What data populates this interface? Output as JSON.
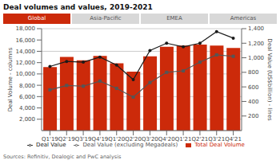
{
  "chart_data": {
    "type": "bar",
    "title": "Deal volumes and values, 2019-2021",
    "annotations": [
      "Global",
      "Asia-Pacific",
      "EMEA",
      "Americas"
    ],
    "source": "Sources: Refinitiv, Dealogic and PwC analysis",
    "categories": [
      "Q1'19",
      "Q2'19",
      "Q3'19",
      "Q4'19",
      "Q1'20",
      "Q2'20",
      "Q3'20",
      "Q4'20",
      "Q1'21",
      "Q2'21",
      "Q3'21",
      "Q4'21"
    ],
    "series": [
      {
        "name": "Total Deal Volume",
        "type": "bar",
        "color": "#cc2a0a",
        "values": [
          11200,
          13000,
          12400,
          13200,
          11900,
          10400,
          13100,
          14800,
          15000,
          15200,
          15000,
          14600
        ]
      },
      {
        "name": "Deal Value",
        "type": "line",
        "axis": "y2",
        "color": "#1a1a1a",
        "marker": "circle",
        "values": [
          880,
          950,
          940,
          1010,
          900,
          700,
          1100,
          1200,
          1150,
          1200,
          1360,
          1270
        ]
      },
      {
        "name": "Deal Value (excluding Megadeals)",
        "type": "line",
        "axis": "y2",
        "color": "#555555",
        "marker": "square",
        "values": [
          560,
          620,
          610,
          680,
          580,
          460,
          660,
          800,
          820,
          940,
          1040,
          1020
        ]
      }
    ],
    "ylabel": "Deal Volume - columns",
    "y2label": "Deal Value (US$billion) - lines",
    "ylim": [
      0,
      18000
    ],
    "yticks": [
      {
        "value": 2000,
        "label": "2,000"
      },
      {
        "value": 4000,
        "label": "4,000"
      },
      {
        "value": 6000,
        "label": "6,000"
      },
      {
        "value": 8000,
        "label": "8,000"
      },
      {
        "value": 10000,
        "label": "10,000"
      },
      {
        "value": 12000,
        "label": "12,000"
      },
      {
        "value": 14000,
        "label": "14,000"
      },
      {
        "value": 16000,
        "label": "16,000"
      },
      {
        "value": 18000,
        "label": "18,000"
      }
    ],
    "y2lim": [
      0,
      1400
    ],
    "y2ticks": [
      200,
      400,
      600,
      800,
      {
        "value": 1000,
        "label": "1,000"
      },
      {
        "value": 1200,
        "label": "1,200"
      },
      {
        "value": 1400,
        "label": "1,400"
      }
    ],
    "grid": true,
    "legend": "bottom"
  }
}
